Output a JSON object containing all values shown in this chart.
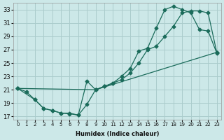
{
  "bg_color": "#cce8e8",
  "grid_color": "#aacccc",
  "line_color": "#1a6b5a",
  "xlabel": "Humidex (Indice chaleur)",
  "yticks": [
    17,
    19,
    21,
    23,
    25,
    27,
    29,
    31,
    33
  ],
  "xticks": [
    0,
    1,
    2,
    3,
    4,
    5,
    6,
    7,
    8,
    9,
    10,
    11,
    12,
    13,
    14,
    15,
    16,
    17,
    18,
    19,
    20,
    21,
    22,
    23
  ],
  "xlim": [
    -0.5,
    23.5
  ],
  "ylim": [
    16.5,
    34.0
  ],
  "line1_x": [
    0,
    1,
    2,
    3,
    4,
    5,
    6,
    7,
    8,
    9,
    10,
    11,
    12,
    13,
    14,
    15,
    16,
    17,
    18,
    19,
    20,
    21,
    22,
    23
  ],
  "line1_y": [
    21.2,
    20.7,
    19.5,
    18.2,
    17.9,
    17.5,
    17.4,
    17.2,
    18.8,
    21.0,
    21.5,
    22.0,
    22.5,
    23.5,
    25.0,
    27.0,
    27.5,
    29.0,
    30.5,
    32.5,
    32.8,
    32.8,
    32.5,
    26.6
  ],
  "line2_x": [
    0,
    2,
    3,
    4,
    5,
    6,
    7,
    8,
    9,
    10,
    11,
    12,
    13,
    14,
    15,
    16,
    17,
    18,
    19,
    20,
    21,
    22,
    23
  ],
  "line2_y": [
    21.2,
    19.5,
    18.2,
    17.9,
    17.5,
    17.5,
    17.2,
    22.3,
    21.0,
    21.5,
    22.0,
    23.0,
    24.2,
    26.8,
    27.2,
    30.2,
    33.0,
    33.5,
    33.0,
    32.5,
    30.0,
    29.8,
    26.5
  ],
  "line3_x": [
    0,
    9,
    23
  ],
  "line3_y": [
    21.2,
    21.0,
    26.6
  ]
}
